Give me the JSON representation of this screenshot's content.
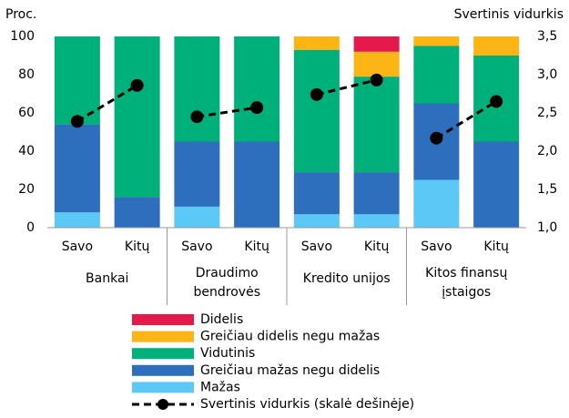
{
  "chart_data": {
    "type": "bar",
    "stacked": true,
    "ylabel": "Proc.",
    "y2label": "Svertinis vidurkis",
    "categories": [
      "Savo",
      "Kitų",
      "Savo",
      "Kitų",
      "Savo",
      "Kitų",
      "Savo",
      "Kitų"
    ],
    "groups": [
      [
        "Bankai"
      ],
      [
        "Draudimo",
        "bendrovės"
      ],
      [
        "Kredito unijos"
      ],
      [
        "Kitos finansų",
        "įstaigos"
      ]
    ],
    "ylim": [
      0,
      100
    ],
    "yticks": [
      0,
      20,
      40,
      60,
      80,
      100
    ],
    "y2lim": [
      1.0,
      3.5
    ],
    "y2ticks": [
      {
        "value": 1.0,
        "label": "1,0"
      },
      {
        "value": 1.5,
        "label": "1,5"
      },
      {
        "value": 2.0,
        "label": "2,0"
      },
      {
        "value": 2.5,
        "label": "2,5"
      },
      {
        "value": 3.0,
        "label": "3,0"
      },
      {
        "value": 3.5,
        "label": "3,5"
      }
    ],
    "series": [
      {
        "name": "Mažas",
        "color": "#5bc8f5",
        "values": [
          8,
          0,
          11,
          0,
          7,
          7,
          25,
          0
        ]
      },
      {
        "name": "Greičiau mažas negu didelis",
        "color": "#2d6ebd",
        "values": [
          46,
          16,
          34,
          45,
          22,
          22,
          40,
          45
        ]
      },
      {
        "name": "Vidutinis",
        "color": "#00b07a",
        "values": [
          46,
          84,
          55,
          55,
          64,
          50,
          30,
          45
        ]
      },
      {
        "name": "Greičiau didelis negu mažas",
        "color": "#fdb515",
        "values": [
          0,
          0,
          0,
          0,
          7,
          13,
          5,
          10
        ]
      },
      {
        "name": "Didelis",
        "color": "#e31a4a",
        "values": [
          0,
          0,
          0,
          0,
          0,
          8,
          0,
          0
        ]
      },
      {
        "name": "Svertinis vidurkis (skalė dešinėje)",
        "type": "line",
        "axis": "y2",
        "color": "#000000",
        "values": [
          2.39,
          2.86,
          2.45,
          2.57,
          2.74,
          2.93,
          2.17,
          2.65
        ]
      }
    ]
  }
}
